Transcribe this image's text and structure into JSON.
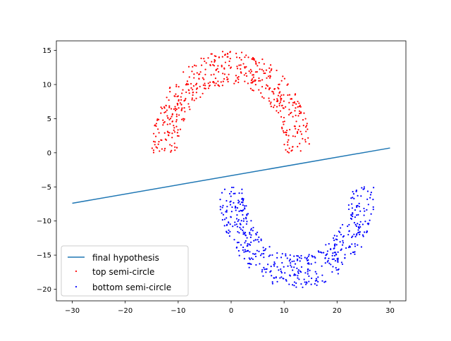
{
  "chart_data": {
    "type": "scatter",
    "title": "",
    "xlabel": "",
    "ylabel": "",
    "xlim": [
      -33,
      33
    ],
    "ylim": [
      -21.7,
      16.4
    ],
    "x_ticks": [
      -30,
      -20,
      -10,
      0,
      10,
      20,
      30
    ],
    "y_ticks": [
      -20,
      -15,
      -10,
      -5,
      0,
      5,
      10,
      15
    ],
    "x_tick_labels": [
      "−30",
      "−20",
      "−10",
      "0",
      "10",
      "20",
      "30"
    ],
    "y_tick_labels": [
      "−20",
      "−15",
      "−10",
      "−5",
      "0",
      "5",
      "10",
      "15"
    ],
    "grid": false,
    "legend_position": "lower-left",
    "series": [
      {
        "name": "final hypothesis",
        "kind": "line",
        "color": "#1f77b4",
        "points": [
          [
            -30,
            -7.4
          ],
          [
            30,
            0.7
          ]
        ]
      },
      {
        "name": "top semi-circle",
        "kind": "scatter",
        "color": "#ff0000",
        "shape": "upper ring",
        "center": [
          0,
          0
        ],
        "radius_range": [
          10,
          15
        ],
        "angle_range_deg": [
          0,
          180
        ],
        "count": 500
      },
      {
        "name": "bottom semi-circle",
        "kind": "scatter",
        "color": "#0000ff",
        "shape": "lower ring",
        "center": [
          12.5,
          -5
        ],
        "radius_range": [
          10,
          15
        ],
        "angle_range_deg": [
          180,
          360
        ],
        "count": 500
      }
    ]
  }
}
